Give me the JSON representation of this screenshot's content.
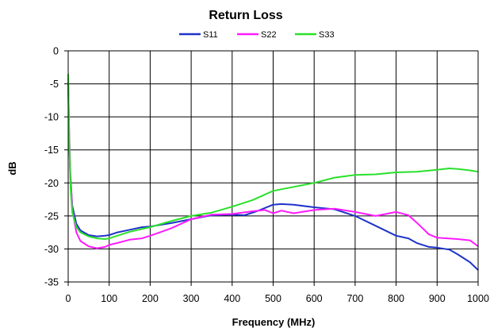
{
  "chart_data": {
    "type": "line",
    "title": "Return Loss",
    "xlabel": "Frequency (MHz)",
    "ylabel": "dB",
    "xlim": [
      0,
      1000
    ],
    "ylim": [
      -35,
      0
    ],
    "xticks": [
      0,
      100,
      200,
      300,
      400,
      500,
      600,
      700,
      800,
      900,
      1000
    ],
    "yticks": [
      0,
      -5,
      -10,
      -15,
      -20,
      -25,
      -30,
      -35
    ],
    "grid": true,
    "legend": "top",
    "series": [
      {
        "name": "S11",
        "color": "#1f34c8",
        "x": [
          0,
          2,
          5,
          10,
          20,
          30,
          50,
          70,
          90,
          100,
          120,
          150,
          180,
          200,
          250,
          300,
          350,
          400,
          430,
          460,
          500,
          520,
          550,
          600,
          650,
          700,
          750,
          800,
          830,
          850,
          880,
          900,
          930,
          950,
          980,
          1000
        ],
        "y": [
          -5,
          -12,
          -19,
          -23.5,
          -26.2,
          -27.2,
          -27.9,
          -28.1,
          -28,
          -27.9,
          -27.5,
          -27.1,
          -26.7,
          -26.6,
          -26.1,
          -25.5,
          -24.9,
          -24.8,
          -24.9,
          -24.3,
          -23.3,
          -23.2,
          -23.3,
          -23.7,
          -24.0,
          -25.0,
          -26.5,
          -28.0,
          -28.4,
          -29.1,
          -29.7,
          -29.8,
          -30.1,
          -30.8,
          -32.0,
          -33.2
        ]
      },
      {
        "name": "S22",
        "color": "#ff1aff",
        "x": [
          0,
          2,
          5,
          10,
          20,
          30,
          50,
          70,
          90,
          100,
          120,
          150,
          180,
          200,
          250,
          300,
          350,
          400,
          450,
          480,
          500,
          520,
          550,
          600,
          650,
          700,
          750,
          800,
          830,
          850,
          880,
          900,
          950,
          980,
          1000
        ],
        "y": [
          -4,
          -11,
          -18,
          -24,
          -27.5,
          -28.8,
          -29.6,
          -29.9,
          -29.7,
          -29.4,
          -29.1,
          -28.6,
          -28.4,
          -28.0,
          -26.9,
          -25.5,
          -24.8,
          -24.7,
          -24.3,
          -24.1,
          -24.6,
          -24.2,
          -24.6,
          -24.1,
          -23.9,
          -24.4,
          -25.0,
          -24.4,
          -24.9,
          -26.0,
          -27.8,
          -28.3,
          -28.5,
          -28.7,
          -29.6
        ]
      },
      {
        "name": "S33",
        "color": "#2ae02a",
        "x": [
          0,
          1,
          3,
          6,
          10,
          20,
          30,
          50,
          70,
          90,
          100,
          150,
          200,
          250,
          300,
          350,
          400,
          450,
          500,
          550,
          600,
          650,
          700,
          750,
          800,
          850,
          900,
          930,
          950,
          980,
          1000
        ],
        "y": [
          -3.5,
          -8,
          -15,
          -21,
          -24.5,
          -26.7,
          -27.5,
          -28.1,
          -28.4,
          -28.5,
          -28.4,
          -27.4,
          -26.7,
          -25.8,
          -25.0,
          -24.5,
          -23.6,
          -22.6,
          -21.2,
          -20.6,
          -20.0,
          -19.2,
          -18.8,
          -18.7,
          -18.4,
          -18.3,
          -18.0,
          -17.8,
          -17.9,
          -18.1,
          -18.3
        ]
      }
    ]
  }
}
